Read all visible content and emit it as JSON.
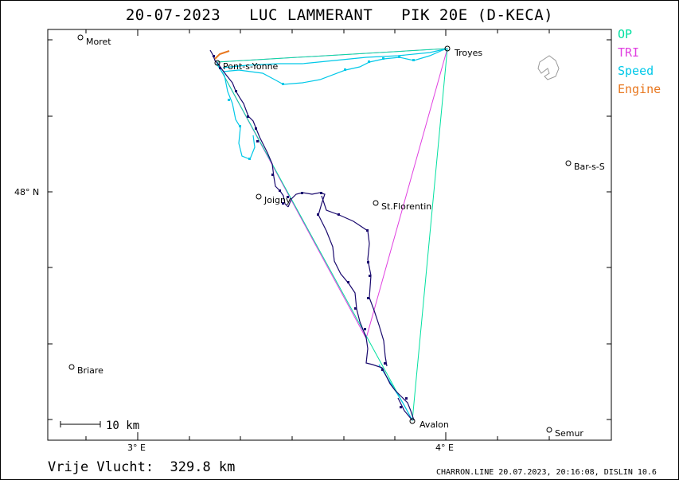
{
  "title": "20-07-2023   LUC LAMMERANT   PIK 20E (D-KECA)",
  "legend": {
    "items": [
      {
        "label": "OP",
        "color": "#00e0a0"
      },
      {
        "label": "TRI",
        "color": "#e040e0"
      },
      {
        "label": "Speed",
        "color": "#00c8e8"
      },
      {
        "label": "Engine",
        "color": "#e87820"
      }
    ]
  },
  "scale_bar": {
    "label": "10 km"
  },
  "distance_text": "Vrije Vlucht:  329.8 km",
  "footer": "CHARRON.LINE 20.07.2023, 20:16:08, DISLIN 10.6",
  "axes": {
    "x_ticks": [
      "3° E",
      "4° E"
    ],
    "y_ticks": [
      "48° N"
    ]
  },
  "cities": [
    {
      "name": "Moret"
    },
    {
      "name": "Troyes"
    },
    {
      "name": "Pont-s-Yonne"
    },
    {
      "name": "Bar-s-S"
    },
    {
      "name": "Joigny"
    },
    {
      "name": "St.Florentin"
    },
    {
      "name": "Briare"
    },
    {
      "name": "Avalon"
    },
    {
      "name": "Semur"
    }
  ],
  "colors": {
    "track": "#1a0a6e",
    "speed": "#00c8e8",
    "op": "#00e0a0",
    "tri": "#e040e0",
    "engine": "#e87820"
  }
}
